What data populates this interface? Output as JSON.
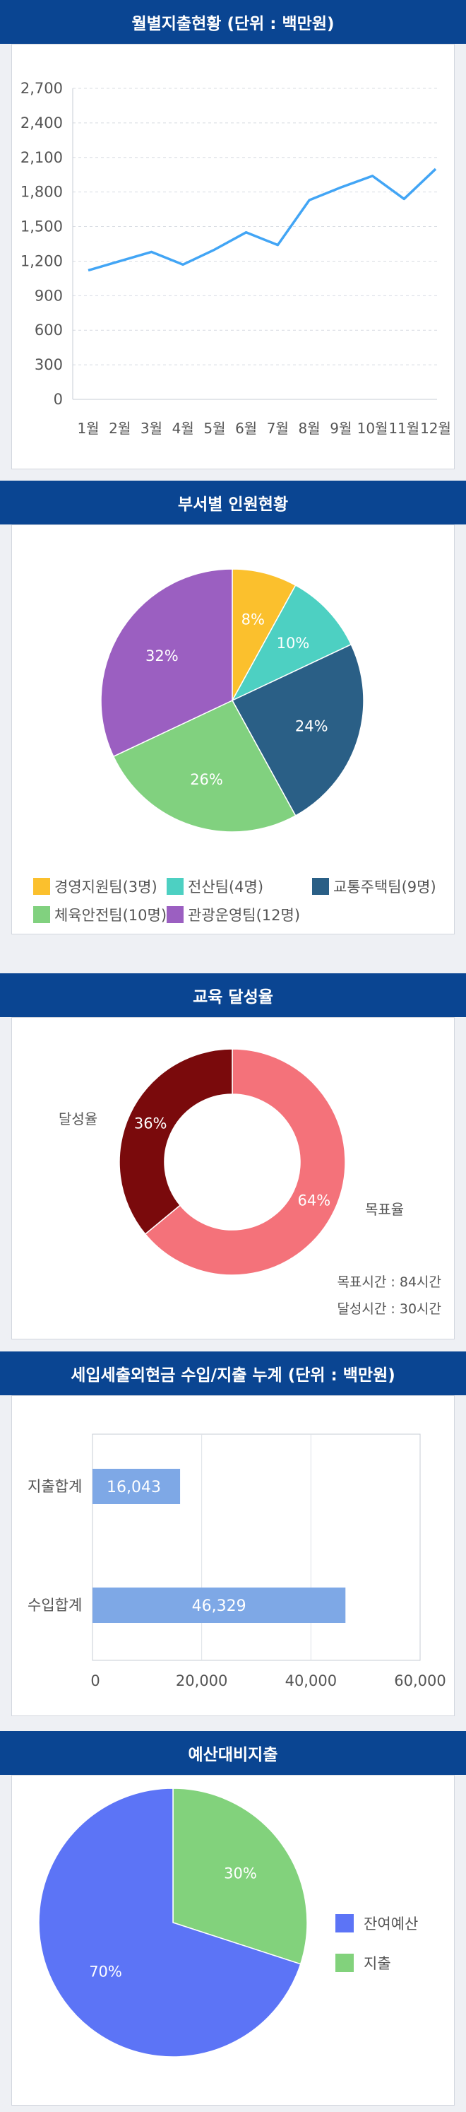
{
  "sections": {
    "monthly": {
      "title": "월별지출현황 (단위 : 백만원)"
    },
    "dept": {
      "title": "부서별 인원현황"
    },
    "edu": {
      "title": "교육 달성율",
      "achieved_label": "달성율",
      "target_label": "목표율",
      "goal_hours": "목표시간 : 84시간",
      "achieved_hours": "달성시간 : 30시간"
    },
    "accum": {
      "title": "세입세출외현금 수입/지출 누계 (단위 : 백만원)"
    },
    "budget": {
      "title": "예산대비지출"
    }
  },
  "chart_data": [
    {
      "type": "line",
      "x": [
        "1월",
        "2월",
        "3월",
        "4월",
        "5월",
        "6월",
        "7월",
        "8월",
        "9월",
        "10월",
        "11월",
        "12월"
      ],
      "series": [
        {
          "values": [
            1120,
            1200,
            1280,
            1170,
            1300,
            1450,
            1340,
            1730,
            1840,
            1940,
            1740,
            2000
          ]
        }
      ],
      "yticks": [
        0,
        300,
        600,
        900,
        1200,
        1500,
        1800,
        2100,
        2400,
        2700
      ],
      "ytick_labels": [
        "0",
        "300",
        "600",
        "900",
        "1,200",
        "1,500",
        "1,800",
        "2,100",
        "2,400",
        "2,700"
      ],
      "ylim": [
        0,
        2700
      ],
      "grid": true,
      "color": "#42a5f5"
    },
    {
      "type": "pie",
      "slices": [
        {
          "label": "경영지원팀(3명)",
          "value": 8,
          "pct_label": "8%",
          "color": "#fbc02d"
        },
        {
          "label": "전산팀(4명)",
          "value": 10,
          "pct_label": "10%",
          "color": "#4dd0c2"
        },
        {
          "label": "교통주택팀(9명)",
          "value": 24,
          "pct_label": "24%",
          "color": "#2a5f86"
        },
        {
          "label": "체육안전팀(10명)",
          "value": 26,
          "pct_label": "26%",
          "color": "#81d17f"
        },
        {
          "label": "관광운영팀(12명)",
          "value": 32,
          "pct_label": "32%",
          "color": "#9b5fc1"
        }
      ],
      "legend": "bottom"
    },
    {
      "type": "pie",
      "donut": true,
      "slices": [
        {
          "label": "목표율",
          "value": 64,
          "pct_label": "64%",
          "color": "#f4727a"
        },
        {
          "label": "달성율",
          "value": 36,
          "pct_label": "36%",
          "color": "#7a0a0c"
        }
      ]
    },
    {
      "type": "bar",
      "orientation": "horizontal",
      "categories": [
        "지출합계",
        "수입합계"
      ],
      "values": [
        16043,
        46329
      ],
      "value_labels": [
        "16,043",
        "46,329"
      ],
      "xticks": [
        0,
        20000,
        40000,
        60000
      ],
      "xtick_labels": [
        "0",
        "20,000",
        "40,000",
        "60,000"
      ],
      "xlim": [
        0,
        60000
      ],
      "grid": true,
      "color": "#7ea8e6"
    },
    {
      "type": "pie",
      "slices": [
        {
          "label": "지출",
          "value": 30,
          "pct_label": "30%",
          "color": "#82d27c"
        },
        {
          "label": "잔여예산",
          "value": 70,
          "pct_label": "70%",
          "color": "#5c74f6"
        }
      ],
      "legend_order": [
        "잔여예산",
        "지출"
      ],
      "legend": "right"
    }
  ]
}
